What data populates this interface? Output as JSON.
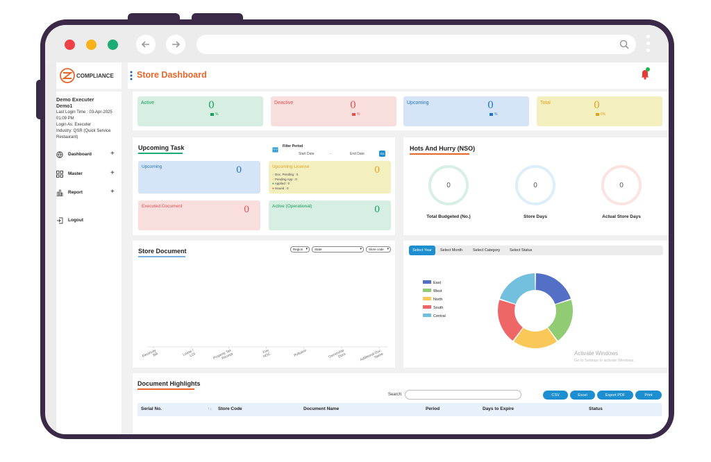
{
  "app": {
    "title": "Store Dashboard",
    "logo_text": "COMPLIANCE"
  },
  "user": {
    "name": "Demo Executer",
    "id": "Demo1",
    "last_login": "Last Login Time : 03-Apr-2025 01:09 PM",
    "login_as": "Login As: Executer",
    "industry": "Industry: QSR (Quick Service Restaurant)"
  },
  "nav": [
    {
      "label": "Dashboard",
      "icon": "globe-icon",
      "plus": "+"
    },
    {
      "label": "Master",
      "icon": "grid-icon",
      "plus": "+"
    },
    {
      "label": "Report",
      "icon": "bar-chart-icon",
      "plus": "+"
    },
    {
      "label": "Logout",
      "icon": "logout-icon"
    }
  ],
  "stats": [
    {
      "label": "Active",
      "value": "0",
      "pct": "%",
      "bg": "#d7eee2",
      "color": "#16a05a"
    },
    {
      "label": "Deactive",
      "value": "0",
      "pct": "%",
      "bg": "#f9dede",
      "color": "#e35050"
    },
    {
      "label": "Upcoming",
      "value": "0",
      "pct": "%",
      "bg": "#d6e4f7",
      "color": "#1f73c7"
    },
    {
      "label": "Total",
      "value": "0",
      "pct": "0%",
      "bg": "#f4efbf",
      "color": "#e8a020"
    }
  ],
  "upcoming_task": {
    "title": "Upcoming Task",
    "filter_label": "Filter Period",
    "start_date": "Start Date",
    "separator": "-",
    "end_date": "End Date",
    "go": "Go",
    "boxes": [
      {
        "label": "Upcoming",
        "value": "0"
      },
      {
        "label": "Upcoming License",
        "value": "0",
        "items": [
          "Doc. Pending : 0",
          "Pending App : 0",
          "Applied : 0",
          "Issued : 0"
        ]
      },
      {
        "label": "Executed Document",
        "value": "0"
      },
      {
        "label": "Active (Operational)",
        "value": "0"
      }
    ]
  },
  "hots": {
    "title": "Hots And Hurry (NSO)",
    "rings": [
      {
        "label": "Total Budgeted (No.)",
        "value": "0",
        "color": "#d8efe6"
      },
      {
        "label": "Store Days",
        "value": "0",
        "color": "#dbeef9"
      },
      {
        "label": "Actual Store Days",
        "value": "0",
        "color": "#fbe3e1"
      }
    ]
  },
  "store_document": {
    "title": "Store Document",
    "selects": [
      "Region",
      "State",
      "Store code"
    ],
    "categories": [
      "Electricity Bill",
      "Lease / LOI",
      "Property Tax Receipt",
      "Fire NOC",
      "Pollution",
      "Ownership Docs",
      "Additional Doc. Name"
    ]
  },
  "filter_tabs": [
    "Select Year",
    "Select Month",
    "Select Category",
    "Select Status"
  ],
  "chart_data": {
    "type": "pie",
    "categories": [
      "East",
      "West",
      "North",
      "South",
      "Central"
    ],
    "values": [
      20,
      20,
      20,
      20,
      20
    ],
    "colors": [
      "#5470c6",
      "#91cc75",
      "#fac858",
      "#ee6666",
      "#73c0de"
    ],
    "legend": "left"
  },
  "watermark": {
    "line1": "Activate Windows",
    "line2": "Go to Settings to activate Windows."
  },
  "highlights": {
    "title": "Document Highlights",
    "search_label": "Search:",
    "buttons": [
      "CSV",
      "Excel",
      "Export PDF",
      "Print"
    ],
    "columns": [
      "Serial No.",
      "Store Code",
      "Document Name",
      "Period",
      "Days to Expire",
      "Status"
    ],
    "sort_icon": "↑↓"
  }
}
